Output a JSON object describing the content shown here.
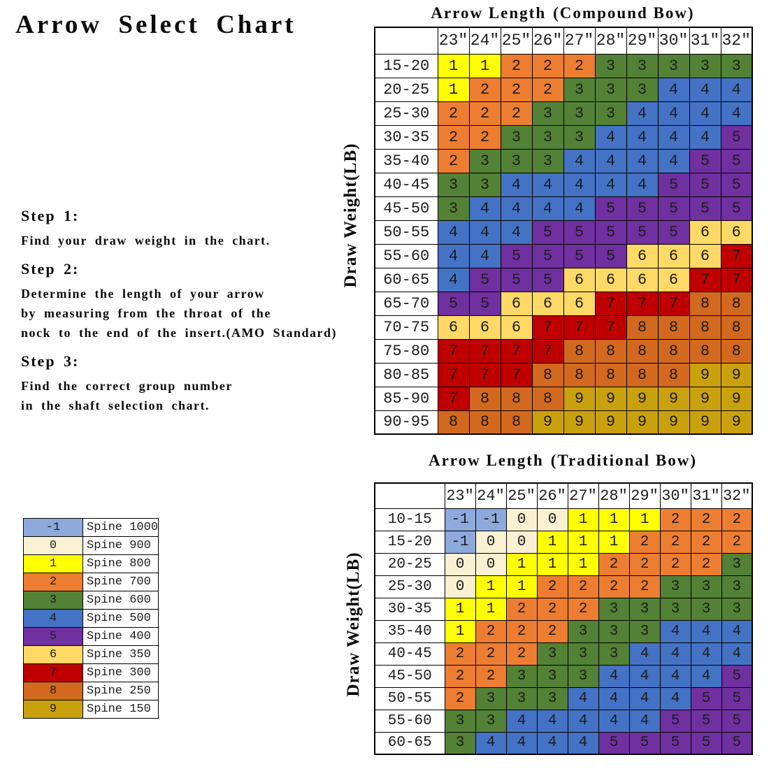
{
  "page_title": "Arrow Select Chart",
  "steps": {
    "step1_label": "Step 1:",
    "step1_lines": [
      "Find your draw weight in the chart."
    ],
    "step2_label": "Step 2:",
    "step2_lines": [
      "Determine the length of your arrow",
      "by measuring from the throat of the",
      "nock to the end of the insert.(AMO Standard)"
    ],
    "step3_label": "Step 3:",
    "step3_lines": [
      "Find the correct group number",
      "in the shaft selection chart."
    ]
  },
  "group_colors": {
    "-1": "#8EA9DB",
    "0": "#FAF0D2",
    "1": "#FFFF00",
    "2": "#ED7D31",
    "3": "#538135",
    "4": "#4472C4",
    "5": "#7030A0",
    "6": "#FFD966",
    "7": "#C00000",
    "8": "#D2691E",
    "9": "#C9A10C"
  },
  "legend": [
    {
      "group": "-1",
      "label": "Spine 1000"
    },
    {
      "group": "0",
      "label": "Spine 900"
    },
    {
      "group": "1",
      "label": "Spine 800"
    },
    {
      "group": "2",
      "label": "Spine 700"
    },
    {
      "group": "3",
      "label": "Spine 600"
    },
    {
      "group": "4",
      "label": "Spine 500"
    },
    {
      "group": "5",
      "label": "Spine 400"
    },
    {
      "group": "6",
      "label": "Spine 350"
    },
    {
      "group": "7",
      "label": "Spine 300"
    },
    {
      "group": "8",
      "label": "Spine 250"
    },
    {
      "group": "9",
      "label": "Spine 150"
    }
  ],
  "chart_data": [
    {
      "id": "compound",
      "type": "heatmap",
      "title_main": "Arrow Length",
      "title_suffix": "(Compound Bow)",
      "xlabel": "Arrow Length (Compound Bow)",
      "ylabel": "Draw Weight(LB)",
      "columns": [
        "23″",
        "24″",
        "25″",
        "26″",
        "27″",
        "28″",
        "29″",
        "30″",
        "31″",
        "32″"
      ],
      "rows": [
        "15-20",
        "20-25",
        "25-30",
        "30-35",
        "35-40",
        "40-45",
        "45-50",
        "50-55",
        "55-60",
        "60-65",
        "65-70",
        "70-75",
        "75-80",
        "80-85",
        "85-90",
        "90-95"
      ],
      "values": [
        [
          1,
          1,
          2,
          2,
          2,
          3,
          3,
          3,
          3,
          3
        ],
        [
          1,
          2,
          2,
          2,
          3,
          3,
          3,
          4,
          4,
          4
        ],
        [
          2,
          2,
          2,
          3,
          3,
          3,
          4,
          4,
          4,
          4
        ],
        [
          2,
          2,
          3,
          3,
          3,
          4,
          4,
          4,
          4,
          5
        ],
        [
          2,
          3,
          3,
          3,
          4,
          4,
          4,
          4,
          5,
          5
        ],
        [
          3,
          3,
          4,
          4,
          4,
          4,
          4,
          5,
          5,
          5
        ],
        [
          3,
          4,
          4,
          4,
          4,
          5,
          5,
          5,
          5,
          5
        ],
        [
          4,
          4,
          4,
          5,
          5,
          5,
          5,
          5,
          6,
          6
        ],
        [
          4,
          4,
          5,
          5,
          5,
          5,
          6,
          6,
          6,
          7
        ],
        [
          4,
          5,
          5,
          5,
          6,
          6,
          6,
          6,
          7,
          7
        ],
        [
          5,
          5,
          6,
          6,
          6,
          7,
          7,
          7,
          8,
          8
        ],
        [
          6,
          6,
          6,
          7,
          7,
          7,
          8,
          8,
          8,
          8
        ],
        [
          7,
          7,
          7,
          7,
          8,
          8,
          8,
          8,
          8,
          8
        ],
        [
          7,
          7,
          7,
          8,
          8,
          8,
          8,
          8,
          9,
          9
        ],
        [
          7,
          8,
          8,
          8,
          9,
          9,
          9,
          9,
          9,
          9
        ],
        [
          8,
          8,
          8,
          9,
          9,
          9,
          9,
          9,
          9,
          9
        ]
      ]
    },
    {
      "id": "traditional",
      "type": "heatmap",
      "title_main": "Arrow Length",
      "title_suffix": "(Traditional Bow)",
      "xlabel": "Arrow Length (Traditional Bow)",
      "ylabel": "Draw Weight(LB)",
      "columns": [
        "23″",
        "24″",
        "25″",
        "26″",
        "27″",
        "28″",
        "29″",
        "30″",
        "31″",
        "32″"
      ],
      "rows": [
        "10-15",
        "15-20",
        "20-25",
        "25-30",
        "30-35",
        "35-40",
        "40-45",
        "45-50",
        "50-55",
        "55-60",
        "60-65"
      ],
      "values": [
        [
          -1,
          -1,
          0,
          0,
          1,
          1,
          1,
          2,
          2,
          2
        ],
        [
          -1,
          0,
          0,
          1,
          1,
          1,
          2,
          2,
          2,
          2
        ],
        [
          0,
          0,
          1,
          1,
          1,
          2,
          2,
          2,
          2,
          3
        ],
        [
          0,
          1,
          1,
          2,
          2,
          2,
          2,
          3,
          3,
          3
        ],
        [
          1,
          1,
          2,
          2,
          2,
          3,
          3,
          3,
          3,
          3
        ],
        [
          1,
          2,
          2,
          2,
          3,
          3,
          3,
          4,
          4,
          4
        ],
        [
          2,
          2,
          2,
          3,
          3,
          3,
          4,
          4,
          4,
          4
        ],
        [
          2,
          2,
          3,
          3,
          3,
          4,
          4,
          4,
          4,
          5
        ],
        [
          2,
          3,
          3,
          3,
          4,
          4,
          4,
          4,
          5,
          5
        ],
        [
          3,
          3,
          4,
          4,
          4,
          4,
          4,
          5,
          5,
          5
        ],
        [
          3,
          4,
          4,
          4,
          4,
          5,
          5,
          5,
          5,
          5
        ]
      ]
    }
  ]
}
